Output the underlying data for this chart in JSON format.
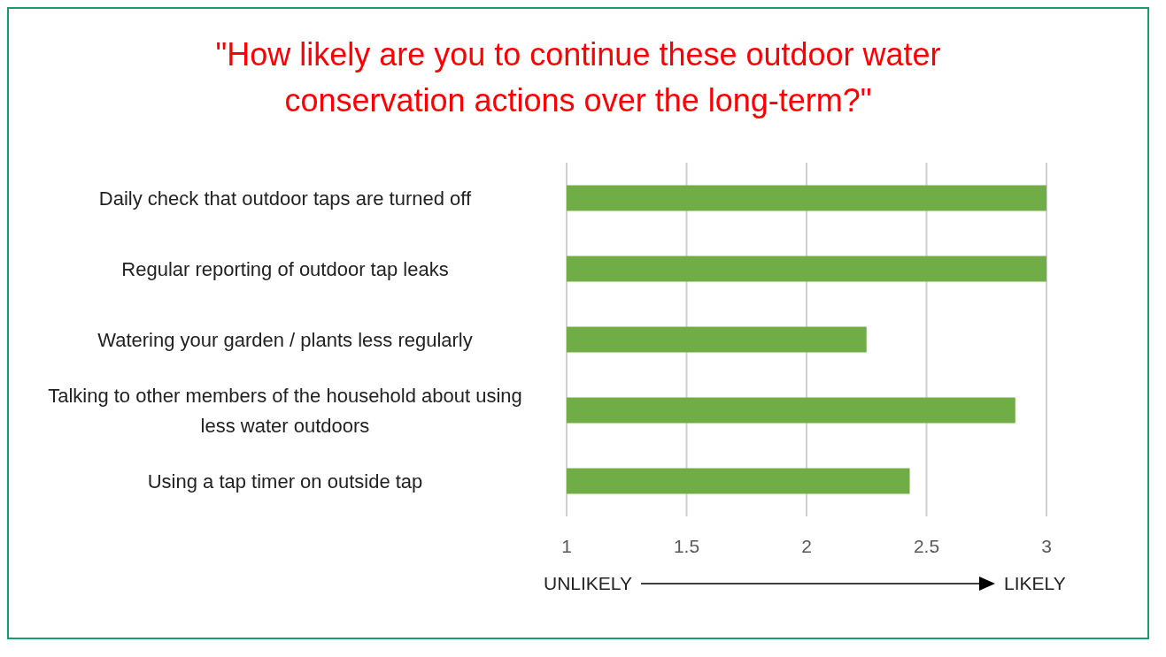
{
  "chart_data": {
    "type": "bar",
    "orientation": "horizontal",
    "title": "\"How likely are you to continue these outdoor water conservation actions over the long-term?\"",
    "categories": [
      "Daily check that outdoor taps are turned off",
      "Regular reporting of outdoor tap leaks",
      "Watering your garden / plants less regularly",
      "Talking to other members of the household about using less water outdoors",
      "Using a tap timer on outside tap"
    ],
    "values": [
      3,
      3,
      2.25,
      2.87,
      2.43
    ],
    "color": "#70ad47",
    "xlim": [
      1,
      3
    ],
    "xticks": [
      1,
      1.5,
      2,
      2.5,
      3
    ],
    "grid": "x",
    "annotations": [
      "UNLIKELY",
      "LIKELY"
    ]
  }
}
